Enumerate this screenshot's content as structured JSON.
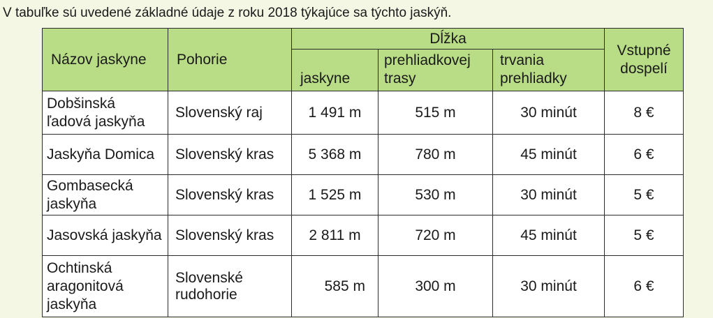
{
  "intro": "V tabuľke sú uvedené základné údaje z roku 2018 týkajúce sa týchto jaskýň.",
  "headers": {
    "name": "Názov jaskyne",
    "range": "Pohorie",
    "length_group": "Dĺžka",
    "cave_length": "jaskyne",
    "route_length": "prehliadkovej trasy",
    "tour_duration": "trvania prehliadky",
    "admission": "Vstupné dospelí"
  },
  "rows": [
    {
      "name": "Dobšinská ľadová jaskyňa",
      "range": "Slovenský raj",
      "cave_length": "1 491 m",
      "route_length": "515 m",
      "tour_duration": "30 minút",
      "admission": "8 €"
    },
    {
      "name": "Jaskyňa Domica",
      "range": "Slovenský kras",
      "cave_length": "5 368 m",
      "route_length": "780 m",
      "tour_duration": "45 minút",
      "admission": "6 €"
    },
    {
      "name": "Gombasecká jaskyňa",
      "range": "Slovenský kras",
      "cave_length": "1 525 m",
      "route_length": "530 m",
      "tour_duration": "30 minút",
      "admission": "5 €"
    },
    {
      "name": "Jasovská jaskyňa",
      "range": "Slovenský kras",
      "cave_length": "2 811 m",
      "route_length": "720 m",
      "tour_duration": "45 minút",
      "admission": "5 €"
    },
    {
      "name": "Ochtinská aragonitová jaskyňa",
      "range": "Slovenské rudohorie",
      "cave_length": "585 m",
      "route_length": "300 m",
      "tour_duration": "30 minút",
      "admission": "6 €"
    }
  ],
  "colors": {
    "header_bg": "#b9dd86",
    "page_bg": "#f3f7e3",
    "cell_bg": "#ffffff",
    "border": "#2b2b2b"
  }
}
